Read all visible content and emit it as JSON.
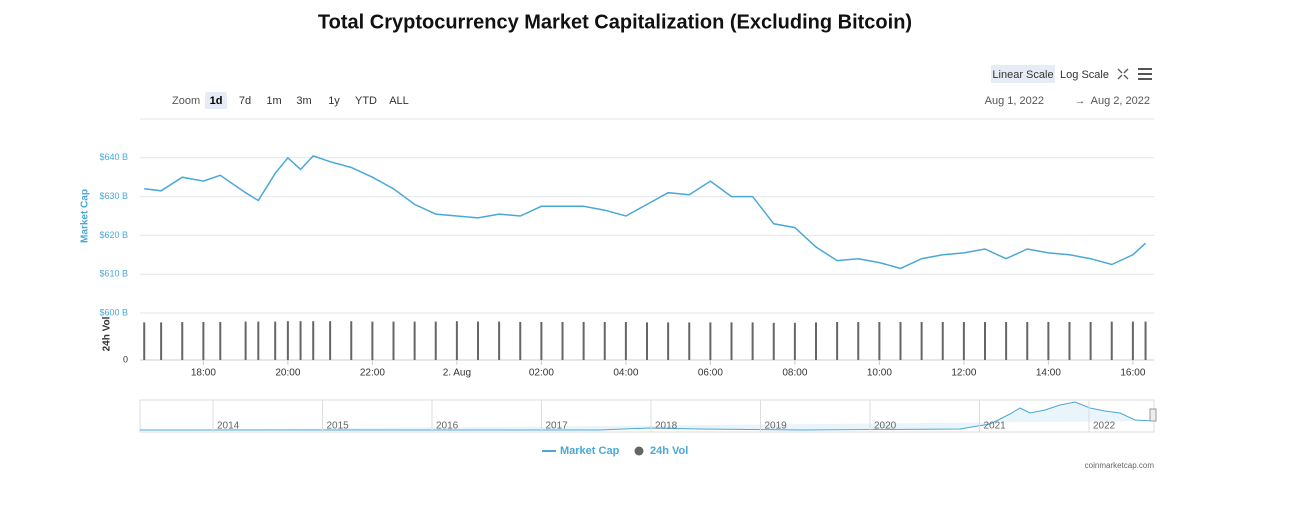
{
  "chart_data": {
    "type": "line",
    "title": "Total Cryptocurrency Market Capitalization (Excluding Bitcoin)",
    "zoom_label": "Zoom",
    "zoom_buttons": [
      "1d",
      "7d",
      "1m",
      "3m",
      "1y",
      "YTD",
      "ALL"
    ],
    "scale_buttons": [
      "Linear Scale",
      "Log Scale"
    ],
    "range_from": "Aug 1, 2022",
    "range_arrow": "→",
    "range_to": "Aug 2, 2022",
    "y_label": "Market Cap",
    "y2_label": "24h Vol",
    "credit": "coinmarketcap.com",
    "xlim": [
      16.5,
      40.5
    ],
    "xticks": [
      {
        "value": 18,
        "label": "18:00"
      },
      {
        "value": 20,
        "label": "20:00"
      },
      {
        "value": 22,
        "label": "22:00"
      },
      {
        "value": 24,
        "label": "2. Aug"
      },
      {
        "value": 26,
        "label": "02:00"
      },
      {
        "value": 28,
        "label": "04:00"
      },
      {
        "value": 30,
        "label": "06:00"
      },
      {
        "value": 32,
        "label": "08:00"
      },
      {
        "value": 34,
        "label": "10:00"
      },
      {
        "value": 36,
        "label": "12:00"
      },
      {
        "value": 38,
        "label": "14:00"
      },
      {
        "value": 40,
        "label": "16:00"
      }
    ],
    "ylim": [
      600,
      650
    ],
    "yticks": [
      {
        "value": 600,
        "label": "$600 B"
      },
      {
        "value": 610,
        "label": "$610 B"
      },
      {
        "value": 620,
        "label": "$620 B"
      },
      {
        "value": 630,
        "label": "$630 B"
      },
      {
        "value": 640,
        "label": "$640 B"
      }
    ],
    "y2lim": [
      0,
      100
    ],
    "y2ticks": [
      0
    ],
    "grid": true,
    "x": [
      16.6,
      17.0,
      17.5,
      18.0,
      18.4,
      19.0,
      19.3,
      19.7,
      20.0,
      20.3,
      20.6,
      21.0,
      21.5,
      22.0,
      22.5,
      23.0,
      23.5,
      24.0,
      24.5,
      25.0,
      25.5,
      26.0,
      26.5,
      27.0,
      27.5,
      28.0,
      28.5,
      29.0,
      29.5,
      30.0,
      30.5,
      31.0,
      31.5,
      32.0,
      32.5,
      33.0,
      33.5,
      34.0,
      34.5,
      35.0,
      35.5,
      36.0,
      36.5,
      37.0,
      37.5,
      38.0,
      38.5,
      39.0,
      39.5,
      40.0,
      40.3
    ],
    "series": [
      {
        "name": "Market Cap",
        "color": "#4aa8d8",
        "values": [
          632,
          631.5,
          635,
          634,
          635.5,
          631,
          629,
          636,
          640,
          637,
          640.5,
          639,
          637.5,
          635,
          632,
          628,
          625.5,
          625,
          624.5,
          625.5,
          625,
          627.5,
          627.5,
          627.5,
          626.5,
          625,
          628,
          631,
          630.5,
          634,
          630,
          630,
          623,
          622,
          617,
          613.5,
          614,
          613,
          611.5,
          614,
          615,
          615.5,
          616.5,
          614,
          616.5,
          615.5,
          615,
          614,
          612.5,
          615,
          618
        ]
      },
      {
        "name": "24h Vol",
        "color": "#666666",
        "axis": "y2",
        "values": [
          94,
          94,
          95,
          95,
          95,
          96,
          96,
          96,
          97,
          97,
          97,
          97,
          97,
          96,
          96,
          96,
          96,
          97,
          96,
          96,
          95,
          95,
          95,
          95,
          95,
          95,
          94,
          94,
          94,
          94,
          94,
          94,
          93,
          93,
          94,
          95,
          95,
          95,
          95,
          95,
          95,
          95,
          95,
          95,
          95,
          95,
          95,
          95,
          96,
          96,
          96
        ]
      }
    ],
    "navigator_labels": [
      "2014",
      "2015",
      "2016",
      "2017",
      "2018",
      "2019",
      "2020",
      "2021",
      "2022"
    ]
  }
}
